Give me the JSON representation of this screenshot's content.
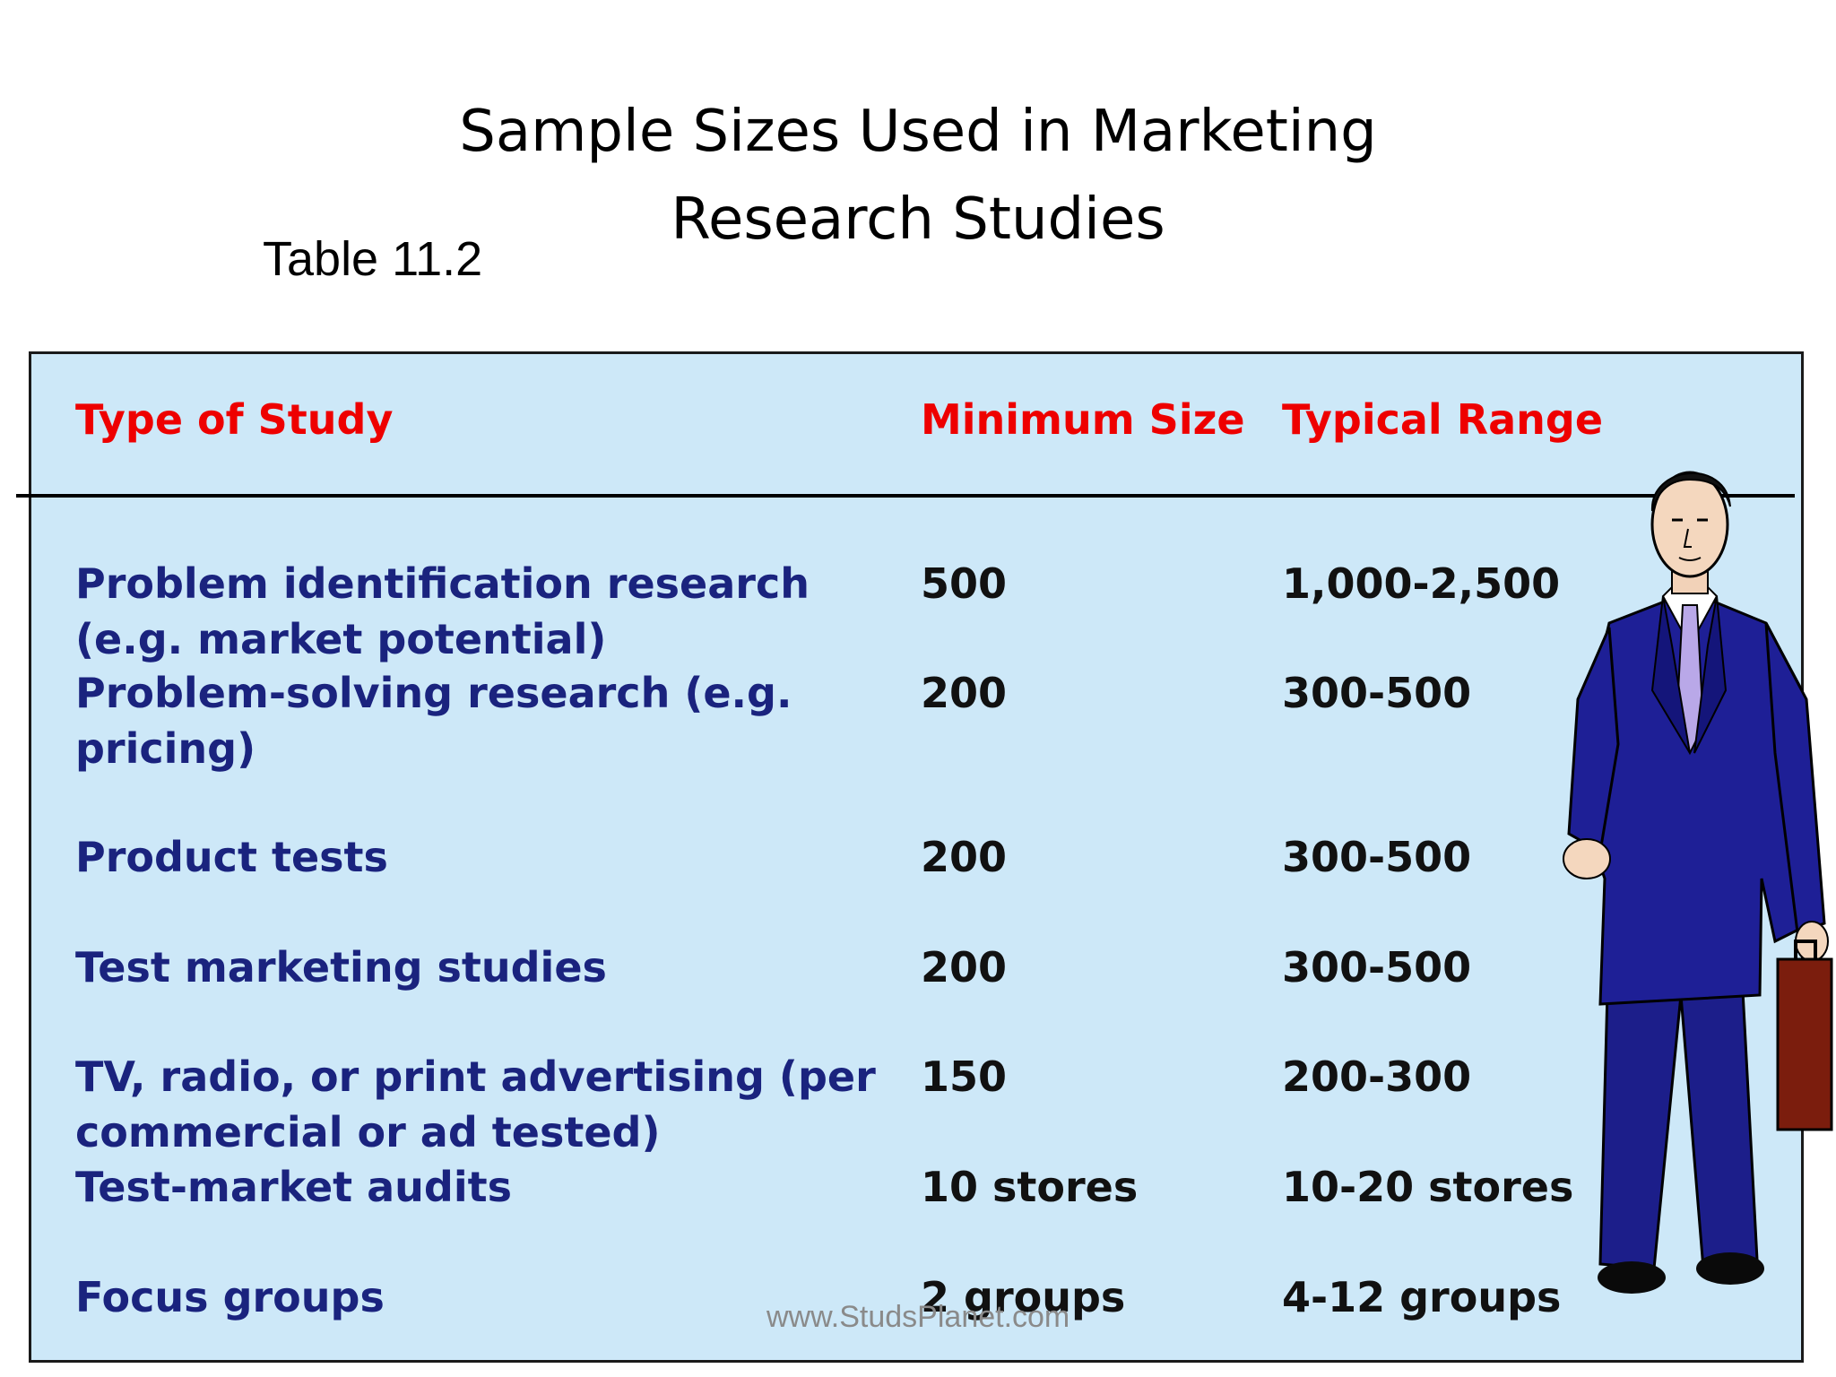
{
  "title": {
    "line1": "Sample Sizes Used in Marketing",
    "line2": "Research Studies"
  },
  "table_label": "Table 11.2",
  "table": {
    "headers": {
      "type": "Type of Study",
      "minimum": "Minimum Size",
      "range": "Typical Range"
    },
    "rows": [
      {
        "type_lines": [
          "Problem identification research",
          "(e.g. market potential)"
        ],
        "minimum": "500",
        "range": "1,000-2,500"
      },
      {
        "type_lines": [
          "Problem-solving research (e.g.",
          "pricing)"
        ],
        "minimum": "200",
        "range": "300-500"
      },
      {
        "type_lines": [
          "Product tests"
        ],
        "minimum": "200",
        "range": "300-500"
      },
      {
        "type_lines": [
          "Test marketing studies"
        ],
        "minimum": "200",
        "range": "300-500"
      },
      {
        "type_lines": [
          "TV, radio, or print advertising (per",
          "commercial or ad tested)"
        ],
        "minimum": "150",
        "range": "200-300"
      },
      {
        "type_lines": [
          "Test-market audits"
        ],
        "minimum": "10 stores",
        "range": "10-20 stores"
      },
      {
        "type_lines": [
          "Focus groups"
        ],
        "minimum": "2 groups",
        "range": "4-12 groups"
      }
    ]
  },
  "watermark": "www.StudsPlanet.com",
  "colors": {
    "table_background": "#cde8f8",
    "header_text": "#ee0000",
    "study_text": "#1a237e",
    "value_text": "#111111"
  },
  "illustration": "businessman-with-briefcase"
}
